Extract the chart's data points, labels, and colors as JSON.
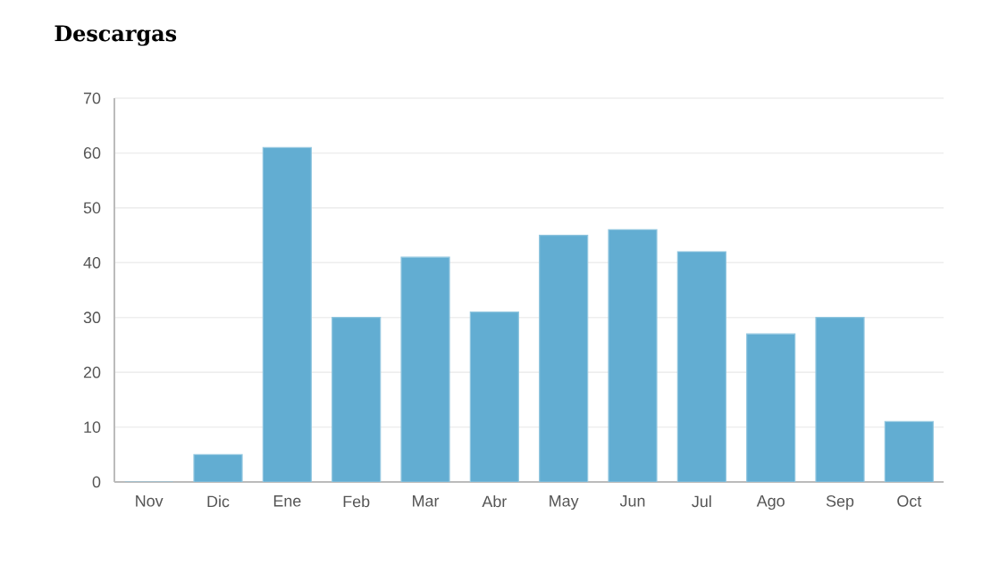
{
  "chart_data": {
    "type": "bar",
    "title": "Descargas",
    "categories": [
      "Nov",
      "Dic",
      "Ene",
      "Feb",
      "Mar",
      "Abr",
      "May",
      "Jun",
      "Jul",
      "Ago",
      "Sep",
      "Oct"
    ],
    "values": [
      0,
      5,
      61,
      30,
      41,
      31,
      45,
      46,
      42,
      27,
      30,
      11
    ],
    "color": "#62add2",
    "ylim": [
      0,
      70
    ],
    "yticks": [
      0,
      10,
      20,
      30,
      40,
      50,
      60,
      70
    ],
    "grid": "y"
  }
}
